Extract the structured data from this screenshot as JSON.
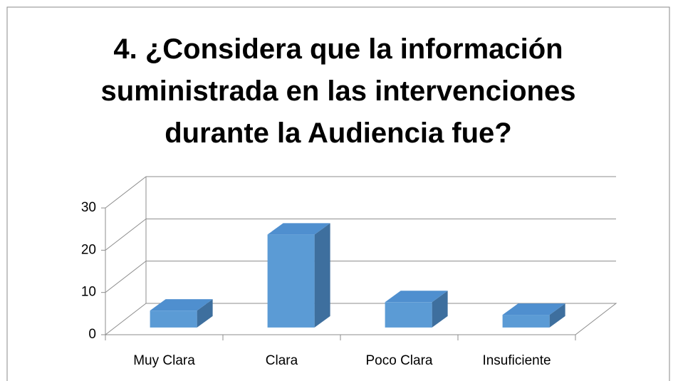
{
  "chart_data": {
    "type": "bar3d",
    "title": "4.\t¿Considera que la información suministrada en las intervenciones durante la Audiencia fue?",
    "categories": [
      "Muy Clara",
      "Clara",
      "Poco Clara",
      "Insuficiente"
    ],
    "values": [
      4,
      22,
      6,
      3
    ],
    "color": "#5b9bd5",
    "ylim": [
      0,
      30
    ],
    "yticks": [
      0,
      10,
      20,
      30
    ],
    "grid": true
  }
}
